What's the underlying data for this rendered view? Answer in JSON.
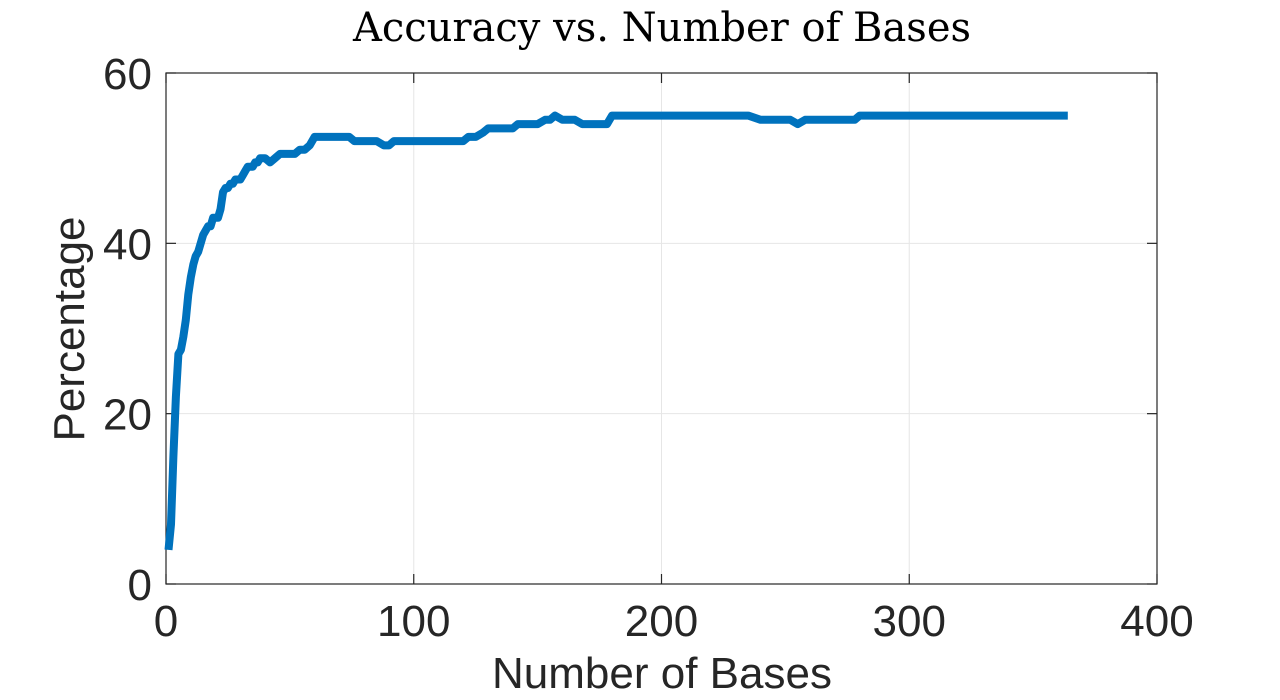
{
  "chart_data": {
    "type": "line",
    "title": "Accuracy vs. Number of Bases",
    "xlabel": "Number of Bases",
    "ylabel": "Percentage",
    "xlim": [
      0,
      400
    ],
    "ylim": [
      0,
      60
    ],
    "xticks": [
      0,
      100,
      200,
      300,
      400
    ],
    "yticks": [
      0,
      20,
      40,
      60
    ],
    "xtick_labels": [
      "0",
      "100",
      "200",
      "300",
      "400"
    ],
    "ytick_labels": [
      "0",
      "20",
      "40",
      "60"
    ],
    "grid": true,
    "legend": "none",
    "series_color": "#0072BD",
    "series": [
      {
        "x": [
          1,
          2,
          3,
          4,
          5,
          6,
          7,
          8,
          9,
          10,
          11,
          12,
          13,
          14,
          15,
          16,
          17,
          18,
          19,
          20,
          21,
          22,
          23,
          24,
          25,
          26,
          27,
          28,
          30,
          31,
          32,
          33,
          34,
          35,
          36,
          37,
          38,
          39,
          40,
          42,
          44,
          46,
          48,
          50,
          52,
          54,
          56,
          58,
          60,
          62,
          64,
          66,
          68,
          70,
          72,
          74,
          76,
          78,
          80,
          85,
          88,
          90,
          92,
          95,
          100,
          105,
          110,
          115,
          120,
          122,
          125,
          128,
          130,
          133,
          135,
          138,
          140,
          142,
          145,
          148,
          150,
          153,
          155,
          157,
          160,
          163,
          165,
          168,
          170,
          173,
          175,
          178,
          180,
          185,
          190,
          195,
          200,
          210,
          220,
          230,
          232,
          235,
          240,
          245,
          250,
          252,
          255,
          258,
          260,
          265,
          270,
          275,
          278,
          280,
          290,
          300,
          310,
          320,
          330,
          340,
          350,
          360,
          364
        ],
        "y": [
          4,
          7,
          15,
          22,
          27,
          27.5,
          29,
          31,
          34,
          36,
          37.5,
          38.5,
          39,
          40,
          41,
          41.5,
          42,
          42,
          43,
          43,
          43,
          44,
          46,
          46.5,
          46.5,
          47,
          47,
          47.5,
          47.5,
          48,
          48.5,
          49,
          49,
          49,
          49.5,
          49.5,
          50,
          50,
          50,
          49.5,
          50,
          50.5,
          50.5,
          50.5,
          50.5,
          51,
          51,
          51.5,
          52.5,
          52.5,
          52.5,
          52.5,
          52.5,
          52.5,
          52.5,
          52.5,
          52,
          52,
          52,
          52,
          51.5,
          51.5,
          52,
          52,
          52,
          52,
          52,
          52,
          52,
          52.5,
          52.5,
          53,
          53.5,
          53.5,
          53.5,
          53.5,
          53.5,
          54,
          54,
          54,
          54,
          54.5,
          54.5,
          55,
          54.5,
          54.5,
          54.5,
          54,
          54,
          54,
          54,
          54,
          55,
          55,
          55,
          55,
          55,
          55,
          55,
          55,
          55,
          55,
          54.5,
          54.5,
          54.5,
          54.5,
          54,
          54.5,
          54.5,
          54.5,
          54.5,
          54.5,
          54.5,
          55,
          55,
          55,
          55,
          55,
          55,
          55,
          55,
          55,
          55
        ]
      }
    ]
  }
}
